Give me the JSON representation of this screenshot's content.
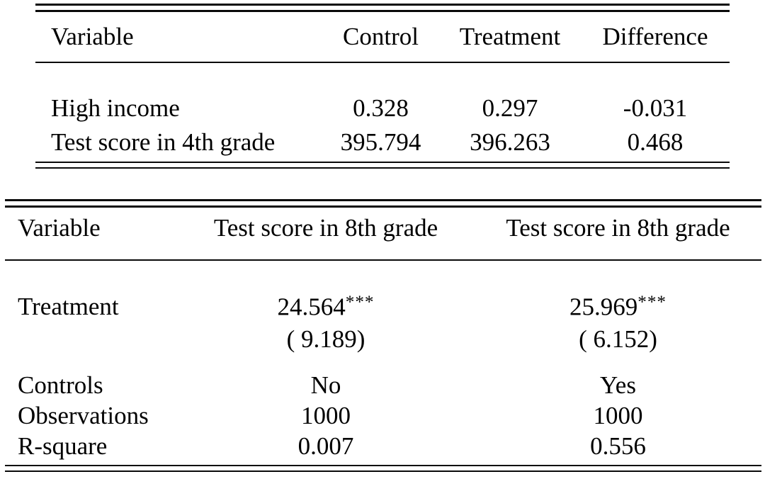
{
  "page": {
    "background": "#ffffff",
    "text_color": "#000000",
    "rule_color": "#0a0a0a"
  },
  "balance_table": {
    "headers": {
      "variable": "Variable",
      "control": "Control",
      "treatment": "Treatment",
      "difference": "Difference"
    },
    "rows": [
      {
        "variable": "High income",
        "control": "0.328",
        "treatment": "0.297",
        "difference": "-0.031"
      },
      {
        "variable": "Test score in 4th grade",
        "control": "395.794",
        "treatment": "396.263",
        "difference": "0.468"
      }
    ]
  },
  "regression_table": {
    "headers": {
      "variable": "Variable",
      "model1": "Test score in 8th grade",
      "model2": "Test score in 8th grade"
    },
    "treatment_row": {
      "label": "Treatment",
      "model1": {
        "coef": "24.564",
        "stars": "***",
        "se": "( 9.189)"
      },
      "model2": {
        "coef": "25.969",
        "stars": "***",
        "se": "( 6.152)"
      }
    },
    "stat_rows": [
      {
        "label": "Controls",
        "model1": "No",
        "model2": "Yes"
      },
      {
        "label": "Observations",
        "model1": "1000",
        "model2": "1000"
      },
      {
        "label": "R-square",
        "model1": "0.007",
        "model2": "0.556"
      }
    ]
  }
}
